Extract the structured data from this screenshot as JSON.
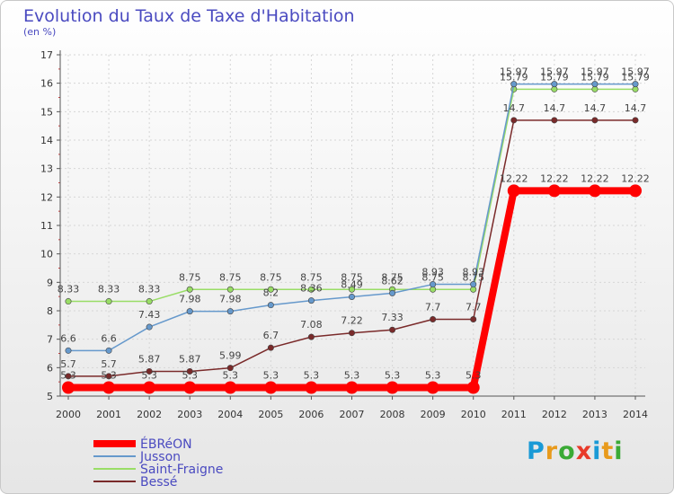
{
  "chart_data": {
    "type": "line",
    "title": "Evolution du Taux de Taxe d'Habitation",
    "ylabel": "(en %)",
    "ylim": [
      5,
      17
    ],
    "yticks": [
      5,
      6,
      7,
      8,
      9,
      10,
      11,
      12,
      13,
      14,
      15,
      16,
      17
    ],
    "categories": [
      "2000",
      "2001",
      "2002",
      "2003",
      "2004",
      "2005",
      "2006",
      "2007",
      "2008",
      "2009",
      "2010",
      "2011",
      "2012",
      "2013",
      "2014"
    ],
    "series": [
      {
        "name": "ÉBRéON",
        "color": "#ff0000",
        "values": [
          5.3,
          5.3,
          5.3,
          5.3,
          5.3,
          5.3,
          5.3,
          5.3,
          5.3,
          5.3,
          5.3,
          12.22,
          12.22,
          12.22,
          12.22
        ],
        "labels": [
          "5.3",
          "5.3",
          "5.3",
          "5.3",
          "5.3",
          "5.3",
          "5.3",
          "5.3",
          "5.3",
          "5.3",
          "5.3",
          "12.22",
          "12.22",
          "12.22",
          "12.22"
        ]
      },
      {
        "name": "Jusson",
        "color": "#6699cc",
        "values": [
          6.6,
          6.6,
          7.43,
          7.98,
          7.98,
          8.2,
          8.36,
          8.49,
          8.62,
          8.93,
          8.93,
          15.97,
          15.97,
          15.97,
          15.97
        ],
        "labels": [
          "6.6",
          "6.6",
          "7.43",
          "7.98",
          "7.98",
          "8.2",
          "8.36",
          "8.49",
          "8.62",
          "8.93",
          "8.93",
          "15.97",
          "15.97",
          "15.97",
          "15.97"
        ]
      },
      {
        "name": "Saint-Fraigne",
        "color": "#99dd66",
        "values": [
          8.33,
          8.33,
          8.33,
          8.75,
          8.75,
          8.75,
          8.75,
          8.75,
          8.75,
          8.75,
          8.75,
          15.79,
          15.79,
          15.79,
          15.79
        ],
        "labels": [
          "8.33",
          "8.33",
          "8.33",
          "8.75",
          "8.75",
          "8.75",
          "8.75",
          "8.75",
          "8.75",
          "8.75",
          "8.75",
          "15.79",
          "15.79",
          "15.79",
          "15.79"
        ]
      },
      {
        "name": "Bessé",
        "color": "#7a2a2a",
        "values": [
          5.7,
          5.7,
          5.87,
          5.87,
          5.99,
          6.7,
          7.08,
          7.22,
          7.33,
          7.7,
          7.7,
          14.7,
          14.7,
          14.7,
          14.7
        ],
        "labels": [
          "5.7",
          "5.7",
          "5.87",
          "5.87",
          "5.99",
          "6.7",
          "7.08",
          "7.22",
          "7.33",
          "7.7",
          "7.7",
          "14.7",
          "14.7",
          "14.7",
          "14.7"
        ]
      }
    ]
  },
  "branding": {
    "logo_text": "Proxiti",
    "logo_colors": [
      "#1a9ad6",
      "#e89a1c",
      "#3aaa35",
      "#e83a2a",
      "#1a9ad6",
      "#e89a1c",
      "#3aaa35"
    ]
  }
}
